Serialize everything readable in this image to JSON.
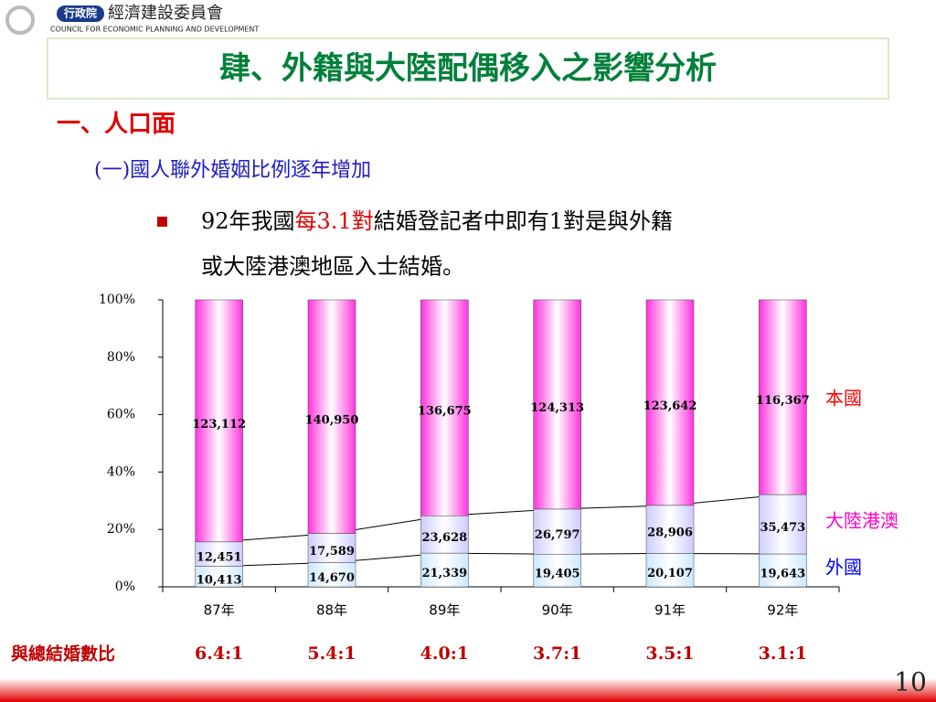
{
  "header": {
    "org": "行政院",
    "org_name": "經濟建設委員會",
    "org_en": "COUNCIL FOR ECONOMIC PLANNING AND DEVELOPMENT"
  },
  "title": "肆、外籍與大陸配偶移入之影響分析",
  "section": "一、人口面",
  "subsection": "(一)國人聯外婚姻比例逐年增加",
  "bullet": {
    "line1": [
      "92年我國",
      "每3.1對",
      "結婚登記者中即有1對是與外籍"
    ],
    "line2": "或大陸港澳地區入士結婚。"
  },
  "page_number": "10",
  "chart_data": {
    "type": "stacked_bar_100",
    "categories": [
      "87年",
      "88年",
      "89年",
      "90年",
      "91年",
      "92年"
    ],
    "series": [
      {
        "name": "外國",
        "color": "#cce8ff",
        "label_color": "#0000ff",
        "values": [
          10413,
          14670,
          21339,
          19405,
          20107,
          19643
        ],
        "value_labels": [
          "10,413",
          "14,670",
          "21,339",
          "19,405",
          "20,107",
          "19,643"
        ]
      },
      {
        "name": "大陸港澳",
        "color": "#ccccff",
        "label_color": "#ff00cc",
        "values": [
          12451,
          17589,
          23628,
          26797,
          28906,
          35473
        ],
        "value_labels": [
          "12,451",
          "17,589",
          "23,628",
          "26,797",
          "28,906",
          "35,473"
        ]
      },
      {
        "name": "本國",
        "color": "#ff33dd",
        "label_color": "#ff0000",
        "values": [
          123112,
          140950,
          136675,
          124313,
          123642,
          116367
        ],
        "value_labels": [
          "123,112",
          "140,950",
          "136,675",
          "124,313",
          "123,642",
          "116,367"
        ]
      }
    ],
    "ylim": [
      0,
      100
    ],
    "yticks": [
      {
        "value": 0,
        "label": "0%"
      },
      {
        "value": 20,
        "label": "20%"
      },
      {
        "value": 40,
        "label": "40%"
      },
      {
        "value": 60,
        "label": "60%"
      },
      {
        "value": 80,
        "label": "80%"
      },
      {
        "value": 100,
        "label": "100%"
      }
    ],
    "ratio_label": "與總結婚數比",
    "ratios": [
      "6.4:1",
      "5.4:1",
      "4.0:1",
      "3.7:1",
      "3.5:1",
      "3.1:1"
    ]
  }
}
